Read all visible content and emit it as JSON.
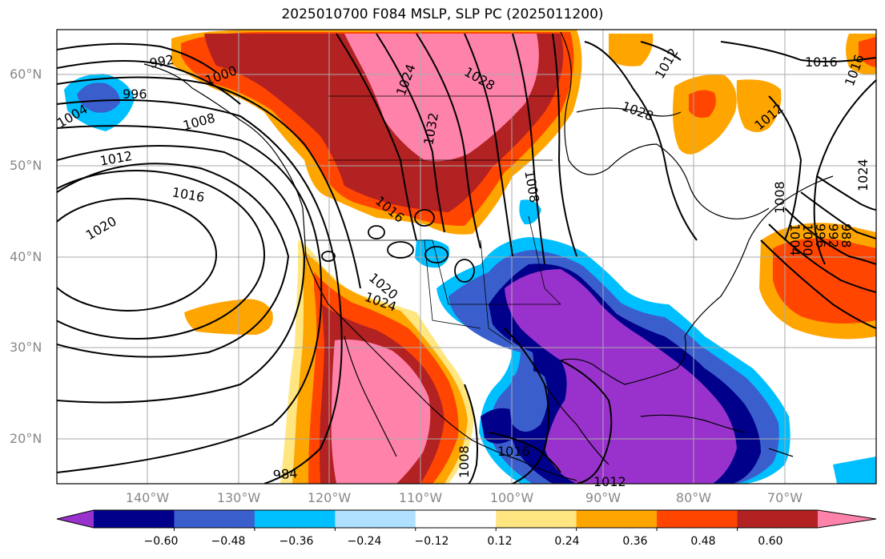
{
  "title": "2025010700 F084 MSLP, SLP PC (2025011200)",
  "lat_labels": [
    "60°N",
    "50°N",
    "40°N",
    "30°N",
    "20°N"
  ],
  "lon_labels": [
    "140°W",
    "130°W",
    "120°W",
    "110°W",
    "100°W",
    "90°W",
    "80°W",
    "70°W"
  ],
  "colorbar": {
    "ticks": [
      "−0.60",
      "−0.48",
      "−0.36",
      "−0.24",
      "−0.12",
      "0.12",
      "0.24",
      "0.36",
      "0.48",
      "0.60"
    ],
    "colors": [
      "#9932cc",
      "#00008b",
      "#3a5fcd",
      "#00bfff",
      "#b0e0ff",
      "#ffffff",
      "#ffe680",
      "#ffa500",
      "#ff4500",
      "#b22222",
      "#ff82ab"
    ]
  },
  "contour_labels": [
    "992",
    "996",
    "1000",
    "1004",
    "1008",
    "1012",
    "1016",
    "1020",
    "1024",
    "1028",
    "1032",
    "1008",
    "1016",
    "1020",
    "1024",
    "1028",
    "1012",
    "1016",
    "1012",
    "1016",
    "1008",
    "1004",
    "1000",
    "996",
    "992",
    "988",
    "984",
    "1016",
    "1008",
    "1012",
    "1024"
  ]
}
